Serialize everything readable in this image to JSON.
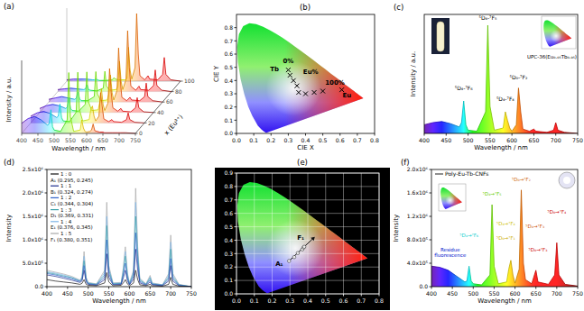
{
  "chart_data": [
    {
      "type": "waterfall",
      "title": "(a)",
      "x_label": "Wavelength / nm",
      "y_label": "Intensity / a.u.",
      "z_label": "x (Eu³⁺)",
      "x": [
        400,
        420,
        440,
        460,
        480,
        485,
        490,
        495,
        500,
        520,
        540,
        545,
        550,
        560,
        580,
        585,
        590,
        595,
        600,
        610,
        615,
        620,
        625,
        640,
        650,
        655,
        680,
        695,
        700,
        705,
        720,
        750
      ],
      "xlim": [
        400,
        750
      ],
      "xticks": [
        400,
        450,
        500,
        550,
        600,
        650,
        700,
        750
      ],
      "ylim": [
        0,
        1
      ],
      "zlim": [
        0,
        100
      ],
      "zticks": [
        0,
        20,
        40,
        60,
        80,
        100
      ],
      "tick_labels": "x",
      "series": [
        {
          "z": 0,
          "values": [
            0.15,
            0.22,
            0.25,
            0.2,
            0.12,
            0.15,
            0.35,
            0.1,
            0.05,
            0.03,
            0.2,
            0.9,
            0.25,
            0.03,
            0.05,
            0.2,
            0.08,
            0.03,
            0.02,
            0.03,
            0.05,
            0.14,
            0.04,
            0.02,
            0.02,
            0.01,
            0.01,
            0.01,
            0.01,
            0.01,
            0.01,
            0
          ]
        },
        {
          "z": 20,
          "values": [
            0.1,
            0.15,
            0.17,
            0.14,
            0.08,
            0.1,
            0.28,
            0.08,
            0.03,
            0.02,
            0.16,
            0.75,
            0.2,
            0.03,
            0.05,
            0.2,
            0.25,
            0.1,
            0.03,
            0.1,
            0.45,
            0.25,
            0.06,
            0.02,
            0.05,
            0.02,
            0.01,
            0.05,
            0.15,
            0.05,
            0.01,
            0
          ]
        },
        {
          "z": 40,
          "values": [
            0.06,
            0.1,
            0.12,
            0.1,
            0.06,
            0.08,
            0.22,
            0.06,
            0.03,
            0.02,
            0.12,
            0.6,
            0.16,
            0.03,
            0.04,
            0.16,
            0.35,
            0.12,
            0.03,
            0.14,
            0.65,
            0.3,
            0.07,
            0.02,
            0.06,
            0.02,
            0.01,
            0.07,
            0.22,
            0.07,
            0.01,
            0
          ]
        },
        {
          "z": 60,
          "values": [
            0.04,
            0.06,
            0.08,
            0.06,
            0.04,
            0.06,
            0.15,
            0.05,
            0.02,
            0.02,
            0.08,
            0.45,
            0.12,
            0.02,
            0.03,
            0.12,
            0.4,
            0.14,
            0.03,
            0.17,
            0.8,
            0.33,
            0.07,
            0.02,
            0.07,
            0.03,
            0.02,
            0.08,
            0.28,
            0.08,
            0.02,
            0
          ]
        },
        {
          "z": 80,
          "values": [
            0.03,
            0.04,
            0.05,
            0.04,
            0.03,
            0.04,
            0.1,
            0.03,
            0.02,
            0.01,
            0.05,
            0.3,
            0.08,
            0.02,
            0.03,
            0.08,
            0.45,
            0.15,
            0.03,
            0.18,
            0.9,
            0.36,
            0.08,
            0.02,
            0.08,
            0.03,
            0.02,
            0.09,
            0.32,
            0.09,
            0.02,
            0
          ]
        },
        {
          "z": 100,
          "values": [
            0.02,
            0.03,
            0.03,
            0.03,
            0.02,
            0.02,
            0.03,
            0.02,
            0.01,
            0.01,
            0.02,
            0.05,
            0.03,
            0.02,
            0.02,
            0.04,
            0.5,
            0.16,
            0.03,
            0.2,
            1.0,
            0.4,
            0.08,
            0.02,
            0.08,
            0.03,
            0.02,
            0.1,
            0.35,
            0.1,
            0.02,
            0
          ]
        }
      ]
    },
    {
      "type": "scatter",
      "title": "(b)",
      "x_label": "CIE X",
      "y_label": "CIE Y",
      "xlim": [
        0,
        0.8
      ],
      "ylim": [
        0,
        0.9
      ],
      "xticks": [
        {
          "value": 0,
          "label": "0.0"
        },
        0.1,
        0.2,
        0.3,
        0.4,
        0.5,
        0.6,
        0.7,
        0.8
      ],
      "yticks": [
        {
          "value": 0,
          "label": "0.0"
        },
        0.1,
        0.2,
        0.3,
        0.4,
        0.5,
        0.6,
        0.7,
        0.8
      ],
      "marker": "x",
      "series": [
        {
          "color": "#000000",
          "x": [
            0.3,
            0.31,
            0.33,
            0.35,
            0.36,
            0.4,
            0.45,
            0.5,
            0.61
          ],
          "values": [
            0.48,
            0.44,
            0.4,
            0.36,
            0.31,
            0.3,
            0.31,
            0.32,
            0.33
          ]
        }
      ],
      "annotations": [
        {
          "text": "0%",
          "x": 0.3,
          "y": 0.53
        },
        {
          "text": "Tb",
          "x": 0.22,
          "y": 0.47
        },
        {
          "text": "Eu%",
          "x": 0.43,
          "y": 0.45
        },
        {
          "text": "100%",
          "x": 0.57,
          "y": 0.37
        },
        {
          "text": "Eu",
          "x": 0.64,
          "y": 0.27
        }
      ]
    },
    {
      "type": "line",
      "title": "(c)",
      "x_label": "Wavelength / nm",
      "y_label": "Intensity / a.u.",
      "x": [
        400,
        420,
        440,
        460,
        480,
        485,
        490,
        495,
        500,
        520,
        540,
        545,
        550,
        560,
        580,
        585,
        590,
        595,
        600,
        610,
        615,
        620,
        625,
        640,
        650,
        655,
        680,
        695,
        700,
        705,
        720,
        750
      ],
      "xlim": [
        400,
        750
      ],
      "xticks": [
        400,
        450,
        500,
        550,
        600,
        650,
        700,
        750
      ],
      "ylim": [
        0,
        1.1
      ],
      "tick_labels": "x",
      "series": [
        {
          "values": [
            0.08,
            0.1,
            0.11,
            0.09,
            0.06,
            0.1,
            0.3,
            0.08,
            0.03,
            0.02,
            0.2,
            1.0,
            0.25,
            0.03,
            0.05,
            0.2,
            0.12,
            0.05,
            0.02,
            0.08,
            0.42,
            0.2,
            0.04,
            0.02,
            0.04,
            0.02,
            0.01,
            0.03,
            0.1,
            0.03,
            0.01,
            0
          ]
        }
      ],
      "annotations": [
        {
          "text": "⁵D₄-⁷F₆",
          "x": 490,
          "label_y": 0.4
        },
        {
          "text": "⁵D₄-⁷F₅",
          "x": 545,
          "label_y": 1.05
        },
        {
          "text": "⁵D₄-⁷F₄",
          "x": 585,
          "label_y": 0.3
        },
        {
          "text": "⁵D₀-⁷F₂",
          "x": 615,
          "label_y": 0.5
        }
      ],
      "inset_label": "UPC-36(Eu₀.₀₅Tb₀.₉₅)"
    },
    {
      "type": "line",
      "title": "(d)",
      "x_label": "Wavelength / nm",
      "y_label": "Intensity",
      "x": [
        400,
        420,
        440,
        460,
        480,
        485,
        490,
        495,
        500,
        520,
        540,
        545,
        550,
        560,
        580,
        585,
        590,
        595,
        600,
        610,
        615,
        620,
        625,
        640,
        650,
        655,
        680,
        695,
        700,
        705,
        720,
        750
      ],
      "xlim": [
        400,
        750
      ],
      "xticks": [
        400,
        450,
        500,
        550,
        600,
        650,
        700,
        750
      ],
      "ylim": [
        0,
        2500000
      ],
      "yticks": [
        {
          "value": 0,
          "label": "0.0"
        },
        {
          "value": 500000,
          "label": "5.0x10⁵"
        },
        {
          "value": 1000000,
          "label": "1.0x10⁶"
        },
        {
          "value": 1500000,
          "label": "1.5x10⁶"
        },
        {
          "value": 2000000,
          "label": "2.0x10⁶"
        },
        {
          "value": 2500000,
          "label": "2.5x10⁶"
        }
      ],
      "legend": "upper left",
      "series": [
        {
          "name": "1 : 0",
          "color": "#111111",
          "cie_label": "A₁ (0.295, 0.245)",
          "values": [
            150000,
            120000,
            100000,
            80000,
            50000,
            70000,
            150000,
            50000,
            30000,
            20000,
            80000,
            300000,
            100000,
            20000,
            30000,
            80000,
            150000,
            60000,
            20000,
            80000,
            350000,
            150000,
            40000,
            20000,
            50000,
            20000,
            10000,
            50000,
            200000,
            50000,
            10000,
            0
          ]
        },
        {
          "name": "1 : 1",
          "color": "#1f2f8f",
          "cie_label": "B₁ (0.324, 0.274)",
          "values": [
            250000,
            220000,
            180000,
            140000,
            90000,
            120000,
            350000,
            100000,
            50000,
            30000,
            150000,
            700000,
            200000,
            40000,
            50000,
            180000,
            350000,
            130000,
            40000,
            160000,
            800000,
            350000,
            80000,
            30000,
            100000,
            40000,
            20000,
            120000,
            450000,
            120000,
            20000,
            0
          ]
        },
        {
          "name": "1 : 2",
          "color": "#2f62c8",
          "cie_label": "C₁ (0.344, 0.304)",
          "values": [
            280000,
            250000,
            210000,
            170000,
            110000,
            150000,
            450000,
            130000,
            60000,
            40000,
            200000,
            1000000,
            280000,
            50000,
            60000,
            250000,
            500000,
            180000,
            50000,
            220000,
            1150000,
            500000,
            110000,
            40000,
            140000,
            50000,
            30000,
            160000,
            600000,
            160000,
            30000,
            0
          ]
        },
        {
          "name": "1 : 3",
          "color": "#3aa0a8",
          "cie_label": "D₁ (0.369, 0.331)",
          "values": [
            300000,
            270000,
            230000,
            190000,
            120000,
            170000,
            550000,
            160000,
            70000,
            50000,
            250000,
            1300000,
            350000,
            60000,
            70000,
            300000,
            650000,
            230000,
            60000,
            280000,
            1500000,
            650000,
            140000,
            50000,
            180000,
            60000,
            30000,
            200000,
            800000,
            200000,
            40000,
            0
          ]
        },
        {
          "name": "1 : 4",
          "color": "#7fb6e6",
          "cie_label": "E₁ (0.376, 0.345)",
          "values": [
            320000,
            290000,
            250000,
            200000,
            130000,
            190000,
            650000,
            180000,
            80000,
            50000,
            300000,
            1500000,
            400000,
            70000,
            80000,
            350000,
            750000,
            270000,
            70000,
            320000,
            1800000,
            750000,
            160000,
            50000,
            210000,
            70000,
            40000,
            240000,
            950000,
            240000,
            40000,
            0
          ]
        },
        {
          "name": "1 : 5",
          "color": "#a8a8a8",
          "cie_label": "F₁ (0.380, 0.351)",
          "values": [
            350000,
            310000,
            270000,
            220000,
            140000,
            210000,
            750000,
            200000,
            90000,
            60000,
            350000,
            1800000,
            450000,
            80000,
            90000,
            400000,
            850000,
            300000,
            80000,
            360000,
            2100000,
            850000,
            180000,
            60000,
            240000,
            80000,
            40000,
            280000,
            1100000,
            280000,
            50000,
            0
          ]
        }
      ]
    },
    {
      "type": "scatter",
      "title": "(e)",
      "xlim": [
        0,
        0.8
      ],
      "ylim": [
        0,
        0.9
      ],
      "xticks": [
        {
          "value": 0,
          "label": "0.0"
        },
        0.1,
        0.2,
        0.3,
        0.4,
        0.5,
        0.6,
        0.7,
        0.8
      ],
      "yticks": [
        {
          "value": 0,
          "label": "0.0"
        },
        0.1,
        0.2,
        0.3,
        0.4,
        0.5,
        0.6,
        0.7,
        0.8,
        0.9
      ],
      "grid": true,
      "marker": "circle",
      "series": [
        {
          "color": "#f0f0f0",
          "x": [
            0.295,
            0.324,
            0.344,
            0.369,
            0.376,
            0.38
          ],
          "values": [
            0.245,
            0.274,
            0.304,
            0.331,
            0.345,
            0.351
          ]
        }
      ],
      "annotations": [
        {
          "text": "A₁",
          "x": 0.24,
          "y": 0.21
        },
        {
          "text": "F₁",
          "x": 0.36,
          "y": 0.4
        }
      ]
    },
    {
      "type": "line",
      "title": "(f)",
      "x_label": "Wavelength / nm",
      "y_label": "Intensity",
      "x": [
        400,
        420,
        440,
        460,
        480,
        485,
        490,
        495,
        500,
        520,
        540,
        545,
        550,
        560,
        580,
        585,
        590,
        595,
        600,
        610,
        615,
        620,
        625,
        640,
        650,
        655,
        680,
        695,
        700,
        705,
        720,
        750
      ],
      "xlim": [
        400,
        750
      ],
      "xticks": [
        400,
        450,
        500,
        550,
        600,
        650,
        700,
        750
      ],
      "ylim": [
        0,
        2000000
      ],
      "yticks": [
        {
          "value": 0,
          "label": "0.0"
        },
        {
          "value": 400000,
          "label": "4.0x10⁵"
        },
        {
          "value": 800000,
          "label": "8.0x10⁵"
        },
        {
          "value": 1200000,
          "label": "1.2x10⁶"
        },
        {
          "value": 1600000,
          "label": "1.6x10⁶"
        },
        {
          "value": 2000000,
          "label": "2.0x10⁶"
        }
      ],
      "legend": "upper left",
      "series": [
        {
          "name": "Poly-Eu-Tb-CNFs",
          "color": "#444444",
          "values": [
            350000,
            330000,
            280000,
            180000,
            80000,
            100000,
            350000,
            100000,
            50000,
            30000,
            200000,
            1400000,
            350000,
            50000,
            80000,
            300000,
            450000,
            200000,
            60000,
            300000,
            1650000,
            400000,
            120000,
            50000,
            280000,
            80000,
            40000,
            200000,
            750000,
            200000,
            40000,
            10000
          ]
        }
      ],
      "annotations": [
        {
          "text": "Residue\nfluorescence",
          "x": 445,
          "label_y": 600000
        },
        {
          "text": "⁵D₄→⁷F₆",
          "x": 490,
          "label_y": 850000
        },
        {
          "text": "⁵D₄→⁷F₅",
          "x": 545,
          "label_y": 1550000
        },
        {
          "text": "⁵D₄→⁷F₄",
          "x": 585,
          "label_x": 578,
          "label_y": 1050000
        },
        {
          "text": "⁵D₀→⁷F₁",
          "x": 590,
          "label_x": 578,
          "label_y": 800000
        },
        {
          "text": "⁵D₀→⁷F₂",
          "x": 615,
          "label_y": 1800000
        },
        {
          "text": "⁵D₄→⁷F₃",
          "x": 620,
          "label_x": 648,
          "label_y": 1000000
        },
        {
          "text": "⁵D₀→⁷F₃",
          "x": 650,
          "label_x": 655,
          "label_y": 600000
        },
        {
          "text": "⁵D₀→⁷F₄",
          "x": 700,
          "label_y": 1250000
        }
      ]
    }
  ]
}
